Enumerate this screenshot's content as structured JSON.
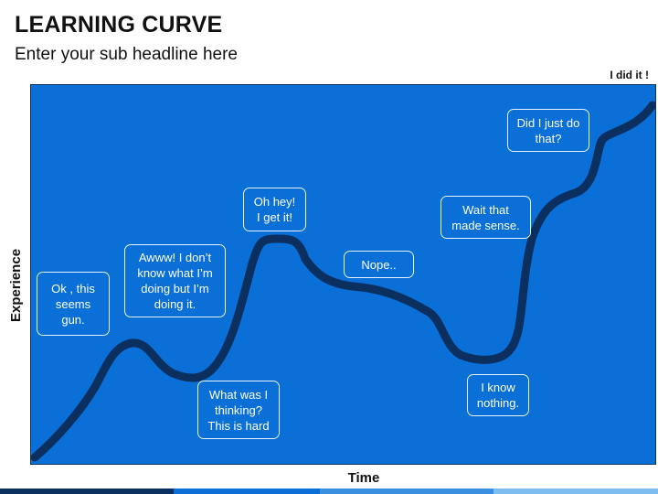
{
  "header": {
    "title": "LEARNING CURVE",
    "subtitle": "Enter your sub headline here"
  },
  "diagram": {
    "goal_label": "I did it !",
    "x_axis_label": "Time",
    "y_axis_label": "Experience",
    "notes": [
      "Ok , this\nseems\ngun.",
      "Awww! I don’t\nknow what I’m\ndoing but I’m\ndoing it.",
      "What was I\nthinking?\nThis is hard",
      "Oh hey!\nI get it!",
      "Nope..",
      "Wait that\nmade sense.",
      "I know\nnothing.",
      "Did I just do\nthat?"
    ]
  },
  "colors": {
    "panel": "#0a6fd6",
    "curve": "#0b2f5e",
    "footer": [
      "#0b2f5e",
      "#0a6fd6",
      "#3b8fe0",
      "#7dbdf0"
    ]
  }
}
